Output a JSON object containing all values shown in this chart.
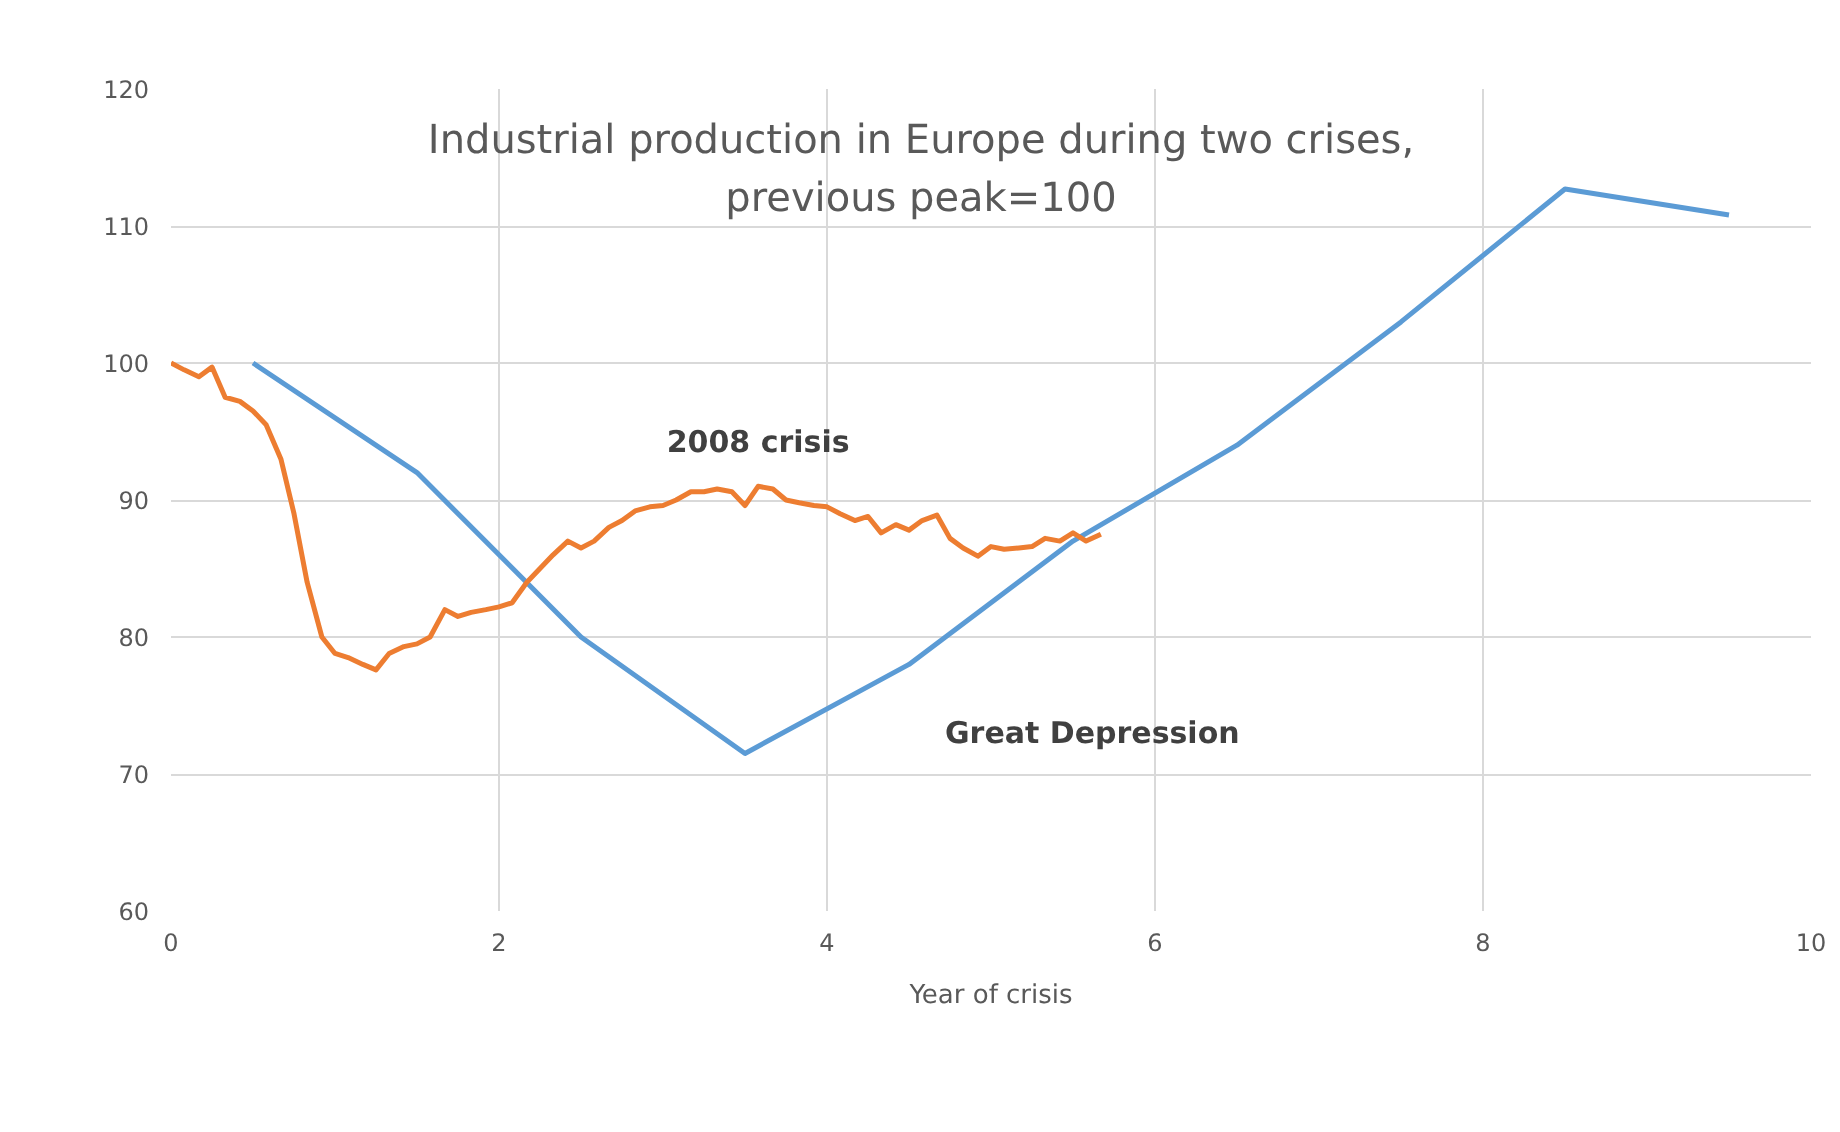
{
  "chart_data": {
    "type": "line",
    "title": "Industrial production in Europe during two crises,\nprevious peak=100",
    "xlabel": "Year of crisis",
    "xlim": [
      0,
      10
    ],
    "xticks": [
      0,
      2,
      4,
      6,
      8,
      10
    ],
    "ylim": [
      60,
      120
    ],
    "yticks": [
      60,
      70,
      80,
      90,
      100,
      110,
      120
    ],
    "grid": true,
    "marker": "none",
    "line_style": "solid",
    "series": [
      {
        "name": "Great Depression",
        "color": "#5b9bd5",
        "x": [
          0.5,
          1.5,
          2.5,
          3.5,
          4.5,
          5.5,
          6.5,
          7.5,
          8.5,
          9.5
        ],
        "values": [
          100,
          92,
          80,
          71.5,
          78,
          87,
          94,
          103,
          112.7,
          110.8
        ]
      },
      {
        "name": "2008 crisis",
        "color": "#ed7d31",
        "x": [
          0,
          0.08,
          0.17,
          0.25,
          0.33,
          0.42,
          0.5,
          0.58,
          0.67,
          0.75,
          0.83,
          0.92,
          1.0,
          1.08,
          1.17,
          1.25,
          1.33,
          1.42,
          1.5,
          1.58,
          1.67,
          1.75,
          1.83,
          1.92,
          2.0,
          2.08,
          2.17,
          2.25,
          2.33,
          2.42,
          2.5,
          2.58,
          2.67,
          2.75,
          2.83,
          2.92,
          3.0,
          3.08,
          3.17,
          3.25,
          3.33,
          3.42,
          3.5,
          3.58,
          3.67,
          3.75,
          3.83,
          3.92,
          4.0,
          4.08,
          4.17,
          4.25,
          4.33,
          4.42,
          4.5,
          4.58,
          4.67,
          4.75,
          4.83,
          4.92,
          5.0,
          5.08,
          5.17,
          5.25,
          5.33,
          5.42,
          5.5,
          5.58,
          5.67
        ],
        "values": [
          100,
          99.5,
          99,
          99.7,
          97.5,
          97.2,
          96.5,
          95.5,
          93,
          89,
          84,
          80,
          78.8,
          78.5,
          78,
          77.6,
          78.8,
          79.3,
          79.5,
          80,
          82,
          81.5,
          81.8,
          82,
          82.2,
          82.5,
          84,
          85,
          86,
          87,
          86.5,
          87,
          88,
          88.5,
          89.2,
          89.5,
          89.6,
          90,
          90.6,
          90.6,
          90.8,
          90.6,
          89.6,
          91,
          90.8,
          90,
          89.8,
          89.6,
          89.5,
          89,
          88.5,
          88.8,
          87.6,
          88.2,
          87.8,
          88.5,
          88.9,
          87.2,
          86.5,
          85.9,
          86.6,
          86.4,
          86.5,
          86.6,
          87.2,
          87,
          87.6,
          87,
          87.5
        ]
      }
    ]
  }
}
